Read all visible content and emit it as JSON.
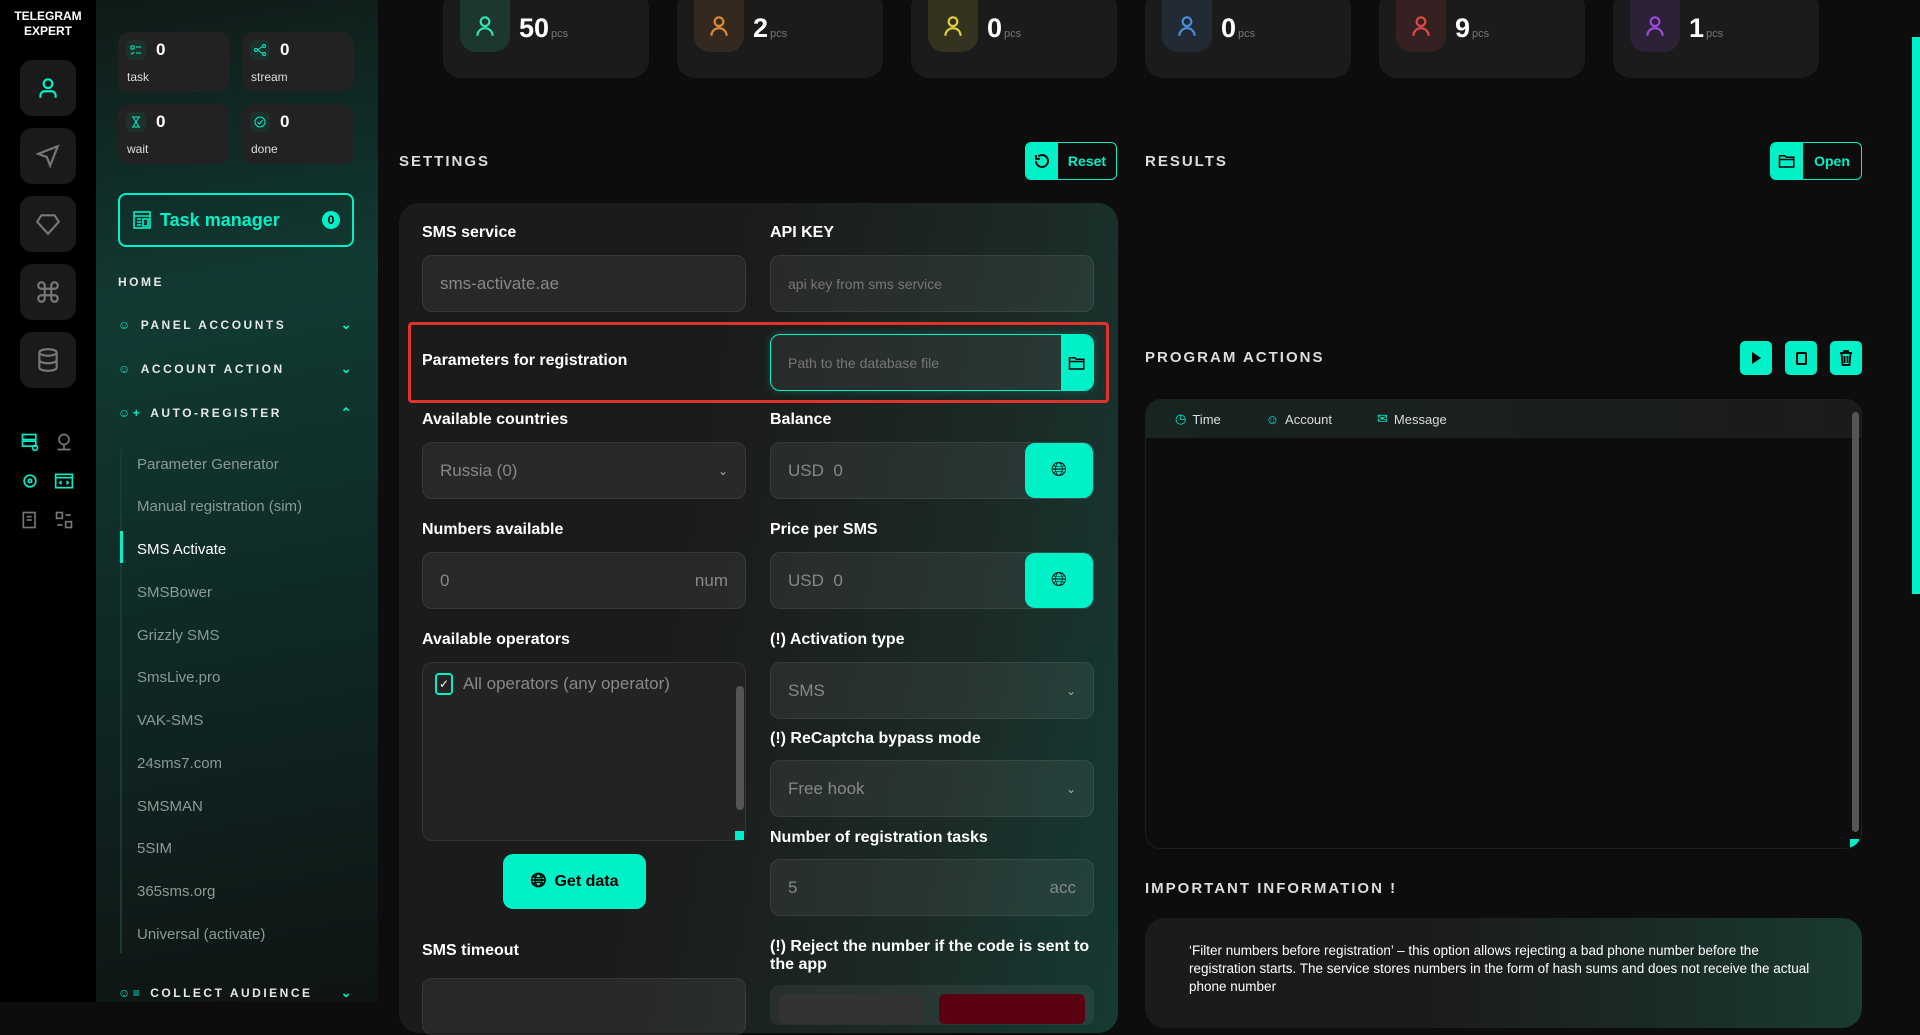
{
  "app": {
    "logo_line1": "TELEGRAM",
    "logo_line2": "EXPERT"
  },
  "rail": {
    "icons": [
      "user-icon",
      "send-icon",
      "diamond-icon",
      "command-icon",
      "database-icon"
    ],
    "mini_icons": [
      "server-check-icon",
      "user-network-icon",
      "gear-icon",
      "code-window-icon",
      "checklist-icon",
      "swap-icon"
    ]
  },
  "sidebar": {
    "stats": [
      {
        "value": "0",
        "label": "task",
        "icon": "task-list-icon"
      },
      {
        "value": "0",
        "label": "stream",
        "icon": "share-icon"
      },
      {
        "value": "0",
        "label": "wait",
        "icon": "hourglass-icon"
      },
      {
        "value": "0",
        "label": "done",
        "icon": "check-circle-icon"
      }
    ],
    "task_manager": {
      "label": "Task manager",
      "count": "0"
    },
    "home": "HOME",
    "sections": [
      {
        "label": "PANEL ACCOUNTS",
        "expanded": false
      },
      {
        "label": "ACCOUNT ACTION",
        "expanded": false
      },
      {
        "label": "AUTO-REGISTER",
        "expanded": true
      },
      {
        "label": "COLLECT AUDIENCE",
        "expanded": false
      }
    ],
    "sub_items": [
      "Parameter Generator",
      "Manual registration (sim)",
      "SMS Activate",
      "SMSBower",
      "Grizzly SMS",
      "SmsLive.pro",
      "VAK-SMS",
      "24sms7.com",
      "SMSMAN",
      "5SIM",
      "365sms.org",
      "Universal (activate)"
    ],
    "active_sub": "SMS Activate"
  },
  "top_stats": [
    {
      "value": "50",
      "unit": "pcs",
      "color": "#2ee6b0",
      "icon": "user-heart-icon"
    },
    {
      "value": "2",
      "unit": "pcs",
      "color": "#e08a3a",
      "icon": "warning-octagon-icon"
    },
    {
      "value": "0",
      "unit": "pcs",
      "color": "#e0d23a",
      "icon": "mail-warning-icon"
    },
    {
      "value": "0",
      "unit": "pcs",
      "color": "#4a8fe0",
      "icon": "folder-user-icon"
    },
    {
      "value": "9",
      "unit": "pcs",
      "color": "#e04a4a",
      "icon": "user-x-icon"
    },
    {
      "value": "1",
      "unit": "pcs",
      "color": "#a04ae0",
      "icon": "device-icon"
    }
  ],
  "settings": {
    "title": "SETTINGS",
    "reset": "Reset",
    "sms_service": {
      "label": "SMS service",
      "value": "sms-activate.ae"
    },
    "api_key": {
      "label": "API KEY",
      "placeholder": "api key from sms service"
    },
    "params": {
      "label": "Parameters for registration",
      "placeholder": "Path to the database file"
    },
    "countries": {
      "label": "Available countries",
      "value": "Russia (0)"
    },
    "balance": {
      "label": "Balance",
      "value": "USD  0"
    },
    "numbers": {
      "label": "Numbers available",
      "value": "0",
      "suffix": "num"
    },
    "price": {
      "label": "Price per SMS",
      "value": "USD  0"
    },
    "operators": {
      "label": "Available operators",
      "option": "All operators (any operator)",
      "checked": true
    },
    "get_data": "Get data",
    "activation": {
      "label": "(!) Activation type",
      "value": "SMS"
    },
    "recaptcha": {
      "label": "(!) ReCaptcha bypass mode",
      "value": "Free hook"
    },
    "tasks": {
      "label": "Number of registration tasks",
      "value": "5",
      "suffix": "acc"
    },
    "sms_timeout": {
      "label": "SMS timeout"
    },
    "reject": {
      "label": "(!) Reject the number if the code is sent to the app"
    }
  },
  "results": {
    "title": "RESULTS",
    "open": "Open"
  },
  "program_actions": {
    "title": "PROGRAM ACTIONS",
    "columns": [
      "Time",
      "Account",
      "Message"
    ]
  },
  "important": {
    "title": "IMPORTANT INFORMATION !",
    "text": "‘Filter numbers before registration’ – this option allows rejecting a bad phone number before the registration starts. The service stores numbers in the form of hash sums and does not receive the actual phone number"
  },
  "colors": {
    "accent": "#00f0c8",
    "highlight": "#e0332c"
  }
}
